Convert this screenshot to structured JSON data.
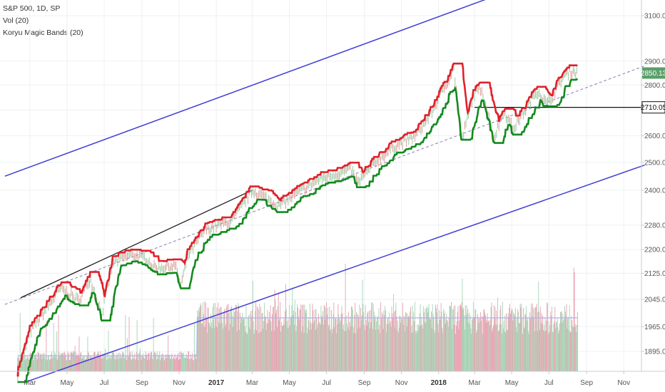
{
  "legend": {
    "symbol": "S&P 500, 1D, SP",
    "volume": "Vol (20)",
    "bands": "Koryu Magic Bands (20)"
  },
  "price_tags": {
    "last": "2850.13",
    "level": "2710.05"
  },
  "colors": {
    "upper_band": "#e0202b",
    "lower_band": "#138a1e",
    "channel": "#3f3fd6",
    "trend_dashed": "#8a7fae",
    "trend_solid": "#1a1a1a",
    "level_line": "#111111",
    "last_tag": "#5aa06a",
    "volume_up": "#a7d3b4",
    "volume_down": "#e8a0b0",
    "volume_ma": "#b7b2f0",
    "grid": "#eef0f3"
  },
  "chart_data": {
    "type": "line",
    "title": "",
    "y_axis": {
      "labels": [
        "3100.00",
        "2900.00",
        "2800.00",
        "2700.00",
        "2600.00",
        "2500.00",
        "2400.00",
        "2280.00",
        "2200.00",
        "2125.00",
        "2045.00",
        "1965.00",
        "1895.00"
      ],
      "values": [
        3100,
        2900,
        2800,
        2700,
        2600,
        2500,
        2400,
        2280,
        2200,
        2125,
        2045,
        1965,
        1895
      ],
      "scale": "log",
      "range": [
        1830,
        3200
      ]
    },
    "x_axis": {
      "labels": [
        "Mar",
        "May",
        "Jul",
        "Sep",
        "Nov",
        "2017",
        "Mar",
        "May",
        "Jul",
        "Sep",
        "Nov",
        "2018",
        "Mar",
        "May",
        "Jul",
        "Sep",
        "Nov"
      ],
      "bold": [
        "2017",
        "2018"
      ]
    },
    "price_x": [
      "2016-02-10",
      "2016-03-01",
      "2016-04-20",
      "2016-05-20",
      "2016-06-08",
      "2016-06-27",
      "2016-07-15",
      "2016-08-15",
      "2016-09-09",
      "2016-09-22",
      "2016-10-25",
      "2016-11-04",
      "2016-11-15",
      "2016-12-13",
      "2017-01-26",
      "2017-03-01",
      "2017-04-13",
      "2017-05-16",
      "2017-06-19",
      "2017-08-10",
      "2017-08-21",
      "2017-09-20",
      "2017-10-20",
      "2017-11-24",
      "2017-12-18",
      "2018-01-26",
      "2018-02-08",
      "2018-02-27",
      "2018-03-12",
      "2018-04-02",
      "2018-04-18",
      "2018-05-03",
      "2018-06-12",
      "2018-06-28",
      "2018-07-25",
      "2018-08-08",
      "2018-08-17"
    ],
    "price_y": [
      1830,
      1950,
      2080,
      2040,
      2110,
      2000,
      2160,
      2185,
      2170,
      2140,
      2150,
      2085,
      2180,
      2265,
      2295,
      2400,
      2345,
      2395,
      2440,
      2475,
      2425,
      2505,
      2560,
      2600,
      2680,
      2872,
      2580,
      2760,
      2790,
      2590,
      2700,
      2625,
      2780,
      2720,
      2840,
      2860,
      2850
    ],
    "series": [
      {
        "name": "Koryu Magic Bands (20)",
        "role": "upper band"
      },
      {
        "name": "Koryu Magic Bands (20)",
        "role": "lower band"
      },
      {
        "name": "Vol (20)",
        "role": "volume histogram and moving average"
      }
    ],
    "lines": {
      "channel_upper": {
        "x": [
          "2016-01-20",
          "2018-07-15"
        ],
        "y": [
          2450,
          3300
        ]
      },
      "channel_lower": {
        "x": [
          "2016-02-20",
          "2018-12-05"
        ],
        "y": [
          1810,
          2490
        ]
      },
      "dashed_trend": {
        "x": [
          "2016-01-20",
          "2018-12-05"
        ],
        "y": [
          2030,
          2880
        ]
      },
      "solid_trend": {
        "x": [
          "2016-02-15",
          "2017-03-01"
        ],
        "y": [
          2050,
          2400
        ]
      },
      "horizontal_level": {
        "x": [
          "2018-03-01",
          "2018-12-05"
        ],
        "y": [
          2710.05,
          2710.05
        ]
      }
    },
    "volume": {
      "relative_low": 0.18,
      "relative_high": 0.62,
      "step_up_date": "2016-12-01"
    },
    "grid": true
  }
}
